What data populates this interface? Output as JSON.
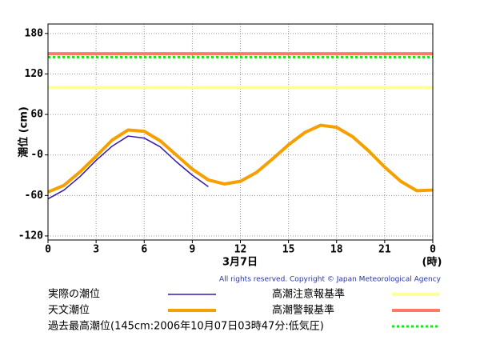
{
  "chart_data": {
    "type": "line",
    "ylabel": "潮位 (cm)",
    "xlabel": "3月7日",
    "xunit": "(時)",
    "copyright": "All rights reserved. Copyright © Japan Meteorological Agency",
    "xlim": [
      0,
      24
    ],
    "xticks": [
      0,
      3,
      6,
      9,
      12,
      15,
      18,
      21,
      {
        "value": 24,
        "label": "0"
      }
    ],
    "ylim": [
      -126,
      194
    ],
    "yticks": [
      {
        "value": -120,
        "label": "-120"
      },
      -60,
      {
        "value": 0,
        "label": "-0"
      },
      60,
      120,
      180
    ],
    "grid": true,
    "series": [
      {
        "name": "実際の潮位",
        "color": "#3418b0",
        "width": 1.5,
        "x": [
          0,
          1,
          2,
          3,
          4,
          5,
          6,
          7,
          8,
          9,
          10
        ],
        "values": [
          -65,
          -52,
          -32,
          -8,
          13,
          28,
          25,
          12,
          -10,
          -30,
          -47
        ]
      },
      {
        "name": "天文潮位",
        "color": "#f5a000",
        "width": 4,
        "x": [
          0,
          1,
          2,
          3,
          4,
          5,
          6,
          7,
          8,
          9,
          10,
          11,
          12,
          13,
          14,
          15,
          16,
          17,
          18,
          19,
          20,
          21,
          22,
          23,
          24
        ],
        "values": [
          -55,
          -45,
          -25,
          -2,
          22,
          37,
          35,
          21,
          0,
          -21,
          -37,
          -43,
          -39,
          -26,
          -6,
          15,
          33,
          44,
          41,
          27,
          6,
          -18,
          -39,
          -53,
          -52
        ]
      }
    ],
    "hlines": [
      {
        "name": "高潮注意報基準",
        "color": "#ffff99",
        "value": 100,
        "style": "solid"
      },
      {
        "name": "高潮警報基準",
        "color": "#ff7a66",
        "value": 150,
        "style": "solid"
      },
      {
        "name": "過去最高潮位(145cm:2006年10月07日03時47分:低気圧)",
        "color": "#22dd22",
        "value": 145,
        "style": "dotted"
      }
    ]
  }
}
